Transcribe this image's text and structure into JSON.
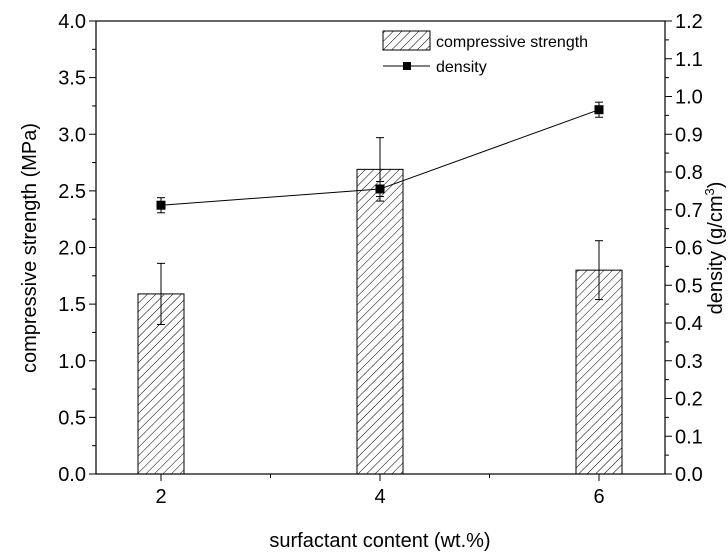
{
  "chart_data": {
    "type": "bar",
    "categories": [
      "2",
      "4",
      "6"
    ],
    "xlabel": "surfactant content (wt.%)",
    "ylabel": "compressive strength (MPa)",
    "y2label": "density (g/cm",
    "y2label_sup": "3",
    "y2label_close": ")",
    "ylim": [
      0,
      4.0
    ],
    "y2lim": [
      0,
      1.2
    ],
    "yticks": [
      "0.0",
      "0.5",
      "1.0",
      "1.5",
      "2.0",
      "2.5",
      "3.0",
      "3.5",
      "4.0"
    ],
    "y2ticks": [
      "0.0",
      "0.1",
      "0.2",
      "0.3",
      "0.4",
      "0.5",
      "0.6",
      "0.7",
      "0.8",
      "0.9",
      "1.0",
      "1.1",
      "1.2"
    ],
    "series": [
      {
        "name": "compressive strength",
        "type": "bar",
        "axis": "left",
        "values": [
          1.59,
          2.69,
          1.8
        ],
        "error": [
          0.27,
          0.28,
          0.26
        ]
      },
      {
        "name": "density",
        "type": "line",
        "axis": "right",
        "values": [
          0.712,
          0.755,
          0.965
        ],
        "error": [
          0.02,
          0.02,
          0.02
        ]
      }
    ],
    "legend_position": "top-right",
    "grid": false
  }
}
